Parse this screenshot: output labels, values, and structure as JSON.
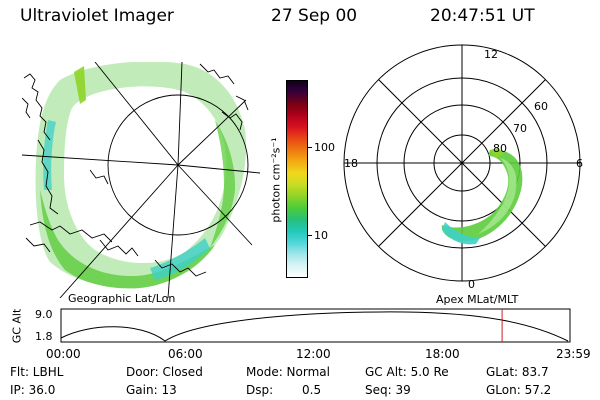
{
  "header": {
    "instrument": "Ultraviolet Imager",
    "date": "27 Sep 00",
    "time": "20:47:51 UT"
  },
  "left_panel": {
    "caption": "Geographic Lat/Lon"
  },
  "right_panel": {
    "caption": "Apex MLat/MLT",
    "mlt_labels": [
      "12",
      "18",
      "6",
      "0"
    ],
    "lat_labels": [
      "60",
      "70",
      "80"
    ]
  },
  "colorbar": {
    "unit_label": "photon cm⁻²s⁻¹",
    "ticks": [
      "100",
      "10"
    ],
    "colors": [
      "#ffffff",
      "#d8f4f4",
      "#9fe6ea",
      "#4fd6d8",
      "#21c8b8",
      "#27c07a",
      "#4ccc38",
      "#8ed428",
      "#c8dc22",
      "#f0d81c",
      "#f2ac14",
      "#ee7a10",
      "#e84616",
      "#d81220",
      "#b0001a",
      "#7a0014",
      "#3a0038",
      "#0c0020"
    ]
  },
  "altitude_plot": {
    "ylabel": "GC Alt",
    "yticks": [
      "9.0",
      "1.8"
    ],
    "xticks": [
      "00:00",
      "06:00",
      "12:00",
      "18:00",
      "23:59"
    ],
    "marker_time_hours": 20.8,
    "curve_color": "#000000",
    "marker_color": "#cc2020"
  },
  "status": {
    "flt": "Flt: LBHL",
    "door": "Door: Closed",
    "mode": "Mode: Normal",
    "gc_alt": "GC Alt: 5.0 Re",
    "glat": "GLat: 83.7",
    "ip": "IP: 36.0",
    "gain": "Gain: 13",
    "dsp_label": "Dsp:",
    "dsp_value": "0.5",
    "seq": "Seq: 39",
    "glon": "GLon: 57.2"
  }
}
